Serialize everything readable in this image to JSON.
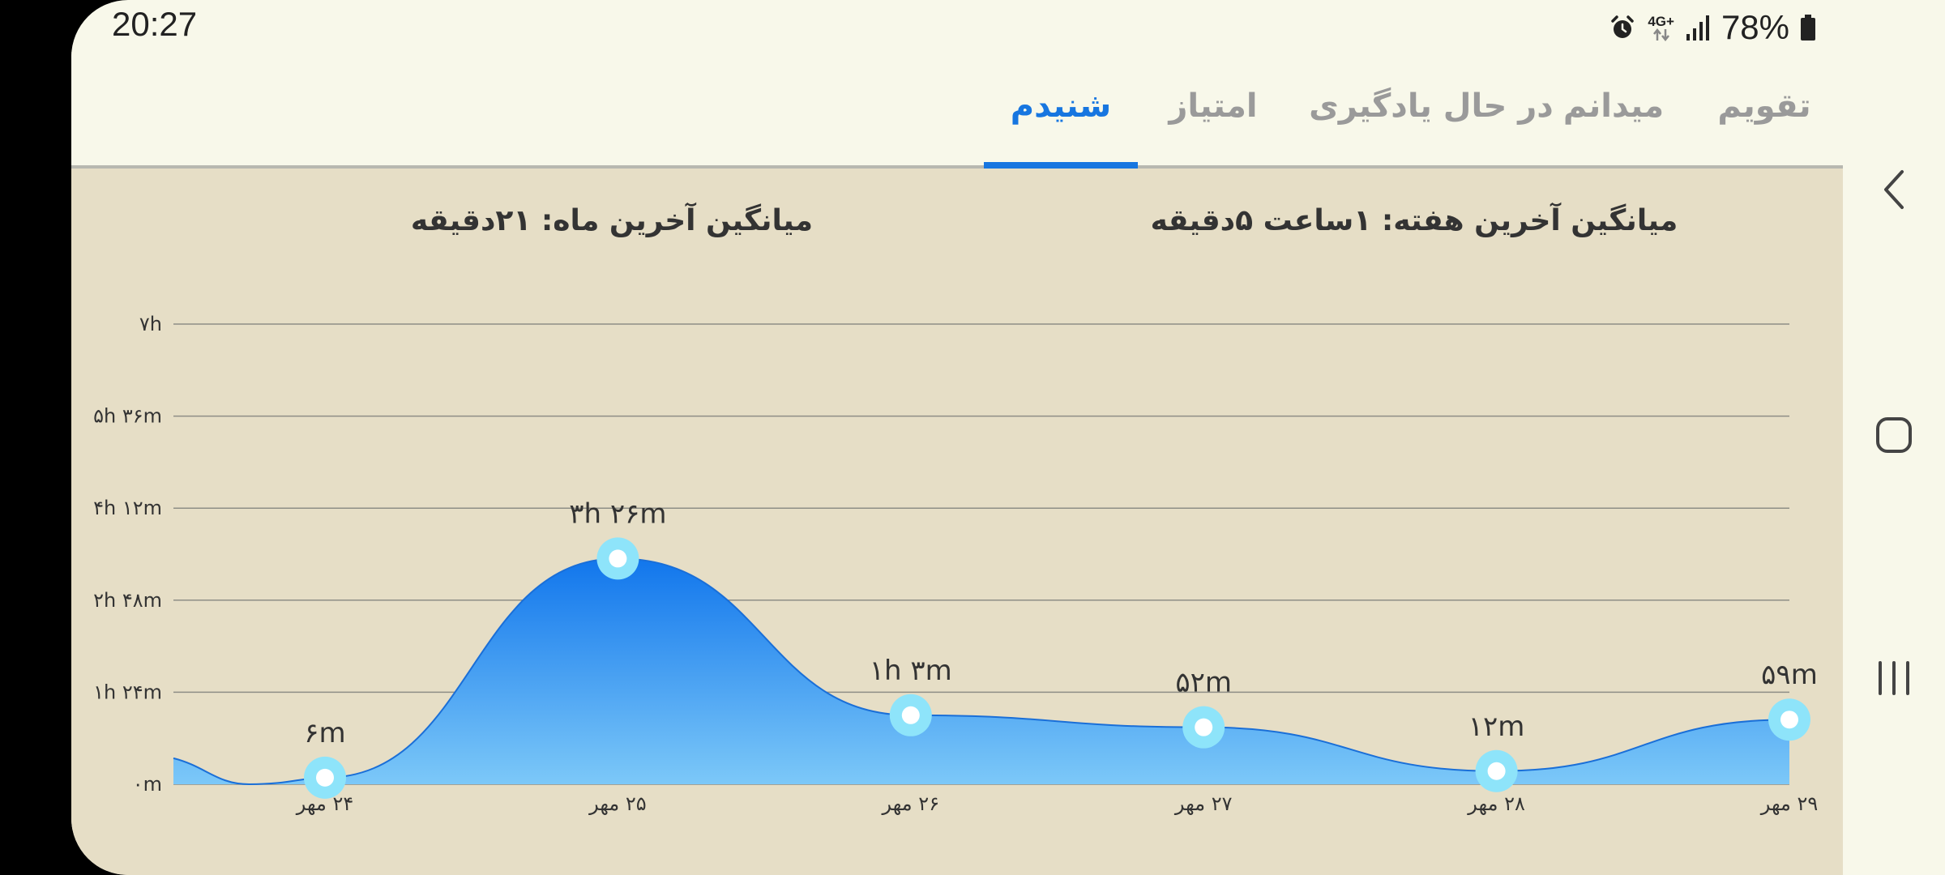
{
  "status_bar": {
    "time": "20:27",
    "battery": "78%",
    "network": "4G+",
    "icons": [
      "alarm-icon",
      "network-4g-icon",
      "signal-icon",
      "battery-icon"
    ]
  },
  "tabs": [
    {
      "label": "تقویم",
      "active": false
    },
    {
      "label": "میدانم",
      "active": false
    },
    {
      "label": "در حال یادگیری",
      "active": false
    },
    {
      "label": "امتیاز",
      "active": false
    },
    {
      "label": "شنیدم",
      "active": true
    }
  ],
  "summary": {
    "week_average": "میانگین آخرین هفته: ۱ساعت  ۵دقیقه",
    "month_average": "میانگین آخرین ماه: ۲۱دقیقه"
  },
  "nav": {
    "icons": [
      "back-icon",
      "home-icon",
      "recents-icon"
    ]
  },
  "colors": {
    "accent": "#1776e0",
    "area_top": "#1176ec",
    "area_bottom": "#7cc8f8",
    "marker": "#8ee4fa",
    "panel": "#e6dec6"
  },
  "chart_data": {
    "type": "area",
    "categories": [
      "۲۴ مهر",
      "۲۵ مهر",
      "۲۶ مهر",
      "۲۷ مهر",
      "۲۸ مهر",
      "۲۹ مهر"
    ],
    "values_minutes": [
      6,
      206,
      63,
      52,
      12,
      59
    ],
    "value_labels": [
      "۶m",
      "۳h ۲۶m",
      "۱h ۳m",
      "۵۲m",
      "۱۲m",
      "۵۹m"
    ],
    "y_ticks": [
      {
        "minutes": 0,
        "label": "۰m"
      },
      {
        "minutes": 84,
        "label": "۱h ۲۴m"
      },
      {
        "minutes": 168,
        "label": "۲h ۴۸m"
      },
      {
        "minutes": 252,
        "label": "۴h ۱۲m"
      },
      {
        "minutes": 336,
        "label": "۵h ۳۶m"
      },
      {
        "minutes": 420,
        "label": "۷h"
      }
    ],
    "ylim": [
      0,
      420
    ],
    "grid": true,
    "legend": "none"
  }
}
